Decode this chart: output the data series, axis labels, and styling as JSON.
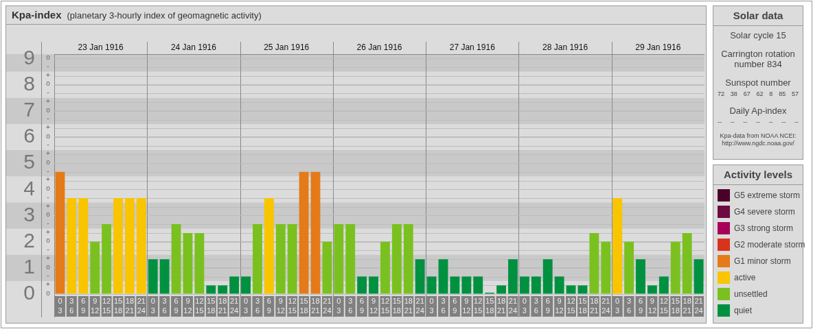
{
  "chart_data": [
    {
      "type": "bar",
      "title": "Kpa-index",
      "subtitle": "(planetary 3-hourly index of geomagnetic activity)",
      "legend_title": "Activity levels",
      "legend": "right",
      "stacked": true,
      "grid": "y",
      "categories": [
        "0\n3",
        "3\n6",
        "6\n9",
        "9\n12",
        "12\n15",
        "15\n18",
        "18\n21",
        "21\n24",
        "0\n3",
        "3\n6",
        "6\n9",
        "9\n12",
        "12\n15",
        "15\n18",
        "18\n21",
        "21\n24",
        "0\n3",
        "3\n6",
        "6\n9",
        "9\n12",
        "12\n15",
        "15\n18",
        "18\n21",
        "21\n24",
        "0\n3",
        "3\n6",
        "6\n9",
        "9\n12",
        "12\n15",
        "15\n18",
        "18\n21",
        "21\n24",
        "0\n3",
        "3\n6",
        "6\n9",
        "9\n12",
        "12\n15",
        "15\n18",
        "18\n21",
        "21\n24",
        "0\n3",
        "3\n6",
        "6\n9",
        "9\n12",
        "12\n15",
        "15\n18",
        "18\n21",
        "21\n24",
        "0\n3",
        "3\n6",
        "6\n9",
        "9\n12",
        "12\n15",
        "15\n18",
        "18\n21",
        "21\n24"
      ],
      "annotations": [
        "o",
        "+",
        "-",
        "o",
        "+",
        "-",
        "o",
        "+",
        "-",
        "o",
        "+",
        "-",
        "o",
        "+",
        "-",
        "o",
        "+",
        "-",
        "o",
        "+",
        "-",
        "o",
        "+",
        "-",
        "o",
        "+",
        "-",
        "o",
        "23 Jan 1916",
        "24 Jan 1916",
        "25 Jan 1916",
        "26 Jan 1916",
        "27 Jan 1916",
        "28 Jan 1916",
        "29 Jan 1916"
      ],
      "ylim": [
        0,
        9.17
      ],
      "yticks": [
        0,
        1,
        2,
        3,
        4,
        5,
        6,
        7,
        8,
        9
      ],
      "bands": [
        {
          "axis": "y",
          "from": 0.5,
          "to": 1.5,
          "color": "#c9c9c9"
        },
        {
          "axis": "y",
          "from": 2.5,
          "to": 3.5,
          "color": "#c9c9c9"
        },
        {
          "axis": "y",
          "from": 4.5,
          "to": 5.5,
          "color": "#c9c9c9"
        },
        {
          "axis": "y",
          "from": 6.5,
          "to": 7.5,
          "color": "#c9c9c9"
        },
        {
          "axis": "y",
          "from": 8.5,
          "to": 9.17,
          "color": "#c9c9c9"
        }
      ],
      "series": [
        {
          "name": "G5 extreme storm",
          "color": "#4a0028",
          "values": [
            null,
            null,
            null,
            null,
            null,
            null,
            null,
            null,
            null,
            null,
            null,
            null,
            null,
            null,
            null,
            null,
            null,
            null,
            null,
            null,
            null,
            null,
            null,
            null,
            null,
            null,
            null,
            null,
            null,
            null,
            null,
            null,
            null,
            null,
            null,
            null,
            null,
            null,
            null,
            null,
            null,
            null,
            null,
            null,
            null,
            null,
            null,
            null,
            null,
            null,
            null,
            null,
            null,
            null,
            null,
            null
          ]
        },
        {
          "name": "G4 severe storm",
          "color": "#6e0a42",
          "values": [
            null,
            null,
            null,
            null,
            null,
            null,
            null,
            null,
            null,
            null,
            null,
            null,
            null,
            null,
            null,
            null,
            null,
            null,
            null,
            null,
            null,
            null,
            null,
            null,
            null,
            null,
            null,
            null,
            null,
            null,
            null,
            null,
            null,
            null,
            null,
            null,
            null,
            null,
            null,
            null,
            null,
            null,
            null,
            null,
            null,
            null,
            null,
            null,
            null,
            null,
            null,
            null,
            null,
            null,
            null,
            null
          ]
        },
        {
          "name": "G3 strong storm",
          "color": "#a8005a",
          "values": [
            null,
            null,
            null,
            null,
            null,
            null,
            null,
            null,
            null,
            null,
            null,
            null,
            null,
            null,
            null,
            null,
            null,
            null,
            null,
            null,
            null,
            null,
            null,
            null,
            null,
            null,
            null,
            null,
            null,
            null,
            null,
            null,
            null,
            null,
            null,
            null,
            null,
            null,
            null,
            null,
            null,
            null,
            null,
            null,
            null,
            null,
            null,
            null,
            null,
            null,
            null,
            null,
            null,
            null,
            null,
            null
          ]
        },
        {
          "name": "G2 moderate storm",
          "color": "#d8341c",
          "values": [
            null,
            null,
            null,
            null,
            null,
            null,
            null,
            null,
            null,
            null,
            null,
            null,
            null,
            null,
            null,
            null,
            null,
            null,
            null,
            null,
            null,
            null,
            null,
            null,
            null,
            null,
            null,
            null,
            null,
            null,
            null,
            null,
            null,
            null,
            null,
            null,
            null,
            null,
            null,
            null,
            null,
            null,
            null,
            null,
            null,
            null,
            null,
            null,
            null,
            null,
            null,
            null,
            null,
            null,
            null,
            null
          ]
        },
        {
          "name": "G1 minor storm",
          "color": "#e57a19",
          "values": [
            4.67,
            null,
            null,
            null,
            null,
            null,
            null,
            null,
            null,
            null,
            null,
            null,
            null,
            null,
            null,
            null,
            null,
            null,
            null,
            null,
            null,
            4.67,
            4.67,
            null,
            null,
            null,
            null,
            null,
            null,
            null,
            null,
            null,
            null,
            null,
            null,
            null,
            null,
            null,
            null,
            null,
            null,
            null,
            null,
            null,
            null,
            null,
            null,
            null,
            null,
            null,
            null,
            null,
            null,
            null,
            null,
            null
          ]
        },
        {
          "name": "active",
          "color": "#f8c500",
          "values": [
            null,
            3.67,
            3.67,
            null,
            null,
            3.67,
            3.67,
            3.67,
            null,
            null,
            null,
            null,
            null,
            null,
            null,
            null,
            null,
            null,
            3.67,
            null,
            null,
            null,
            null,
            null,
            null,
            null,
            null,
            null,
            null,
            null,
            null,
            null,
            null,
            null,
            null,
            null,
            null,
            null,
            null,
            null,
            null,
            null,
            null,
            null,
            null,
            null,
            null,
            null,
            3.67,
            null,
            null,
            null,
            null,
            null,
            null,
            null
          ]
        },
        {
          "name": "unsettled",
          "color": "#7ac120",
          "values": [
            null,
            null,
            null,
            2,
            2.67,
            null,
            null,
            null,
            null,
            null,
            2.67,
            2.33,
            2.33,
            null,
            null,
            null,
            null,
            2.67,
            null,
            2.67,
            2.67,
            null,
            null,
            2,
            2.67,
            2.67,
            null,
            null,
            2,
            2.67,
            2.67,
            null,
            null,
            null,
            null,
            null,
            null,
            null,
            null,
            null,
            null,
            null,
            null,
            null,
            null,
            null,
            2.33,
            2,
            null,
            2,
            null,
            null,
            null,
            2,
            2.33,
            null
          ]
        },
        {
          "name": "quiet",
          "color": "#009140",
          "values": [
            null,
            null,
            null,
            null,
            null,
            null,
            null,
            null,
            1.33,
            1.33,
            null,
            null,
            null,
            0.33,
            0.33,
            0.67,
            0.67,
            null,
            null,
            null,
            null,
            null,
            null,
            null,
            null,
            null,
            0.67,
            0.67,
            null,
            null,
            null,
            1.33,
            0.67,
            1.33,
            0.67,
            0.67,
            0.67,
            0,
            0.33,
            1.33,
            0.67,
            0.67,
            1.33,
            0.67,
            0.33,
            0.33,
            null,
            null,
            null,
            null,
            1.33,
            0.33,
            0.67,
            null,
            null,
            1.33
          ]
        }
      ]
    },
    {
      "type": "other",
      "title": "Solar data",
      "annotations": [
        "Solar cycle 15",
        "Carrington rotation number 834",
        "Sunspot number",
        "72 38 67 62 8 85 57",
        "Daily Ap-index",
        "-- -- -- -- -- -- --",
        "Kpa-data from NOAA NCEI: http://www.ngdc.noaa.gov/"
      ]
    }
  ]
}
